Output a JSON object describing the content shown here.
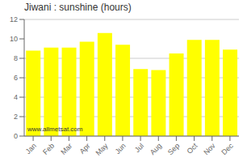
{
  "chart_data": {
    "type": "bar",
    "title": "Jiwani : sunshine (hours)",
    "categories": [
      "Jan",
      "Feb",
      "Mar",
      "Apr",
      "May",
      "Jun",
      "Jul",
      "Aug",
      "Sep",
      "Oct",
      "Nov",
      "Dec"
    ],
    "values": [
      8.8,
      9.1,
      9.1,
      9.7,
      10.6,
      9.4,
      6.9,
      6.8,
      8.5,
      9.9,
      9.9,
      8.9
    ],
    "color": "#FFFF00",
    "ylim": [
      0,
      12
    ],
    "yticks": [
      0,
      2,
      4,
      6,
      8,
      10,
      12
    ],
    "grid": true,
    "annotation": "www.allmetsat.com"
  }
}
